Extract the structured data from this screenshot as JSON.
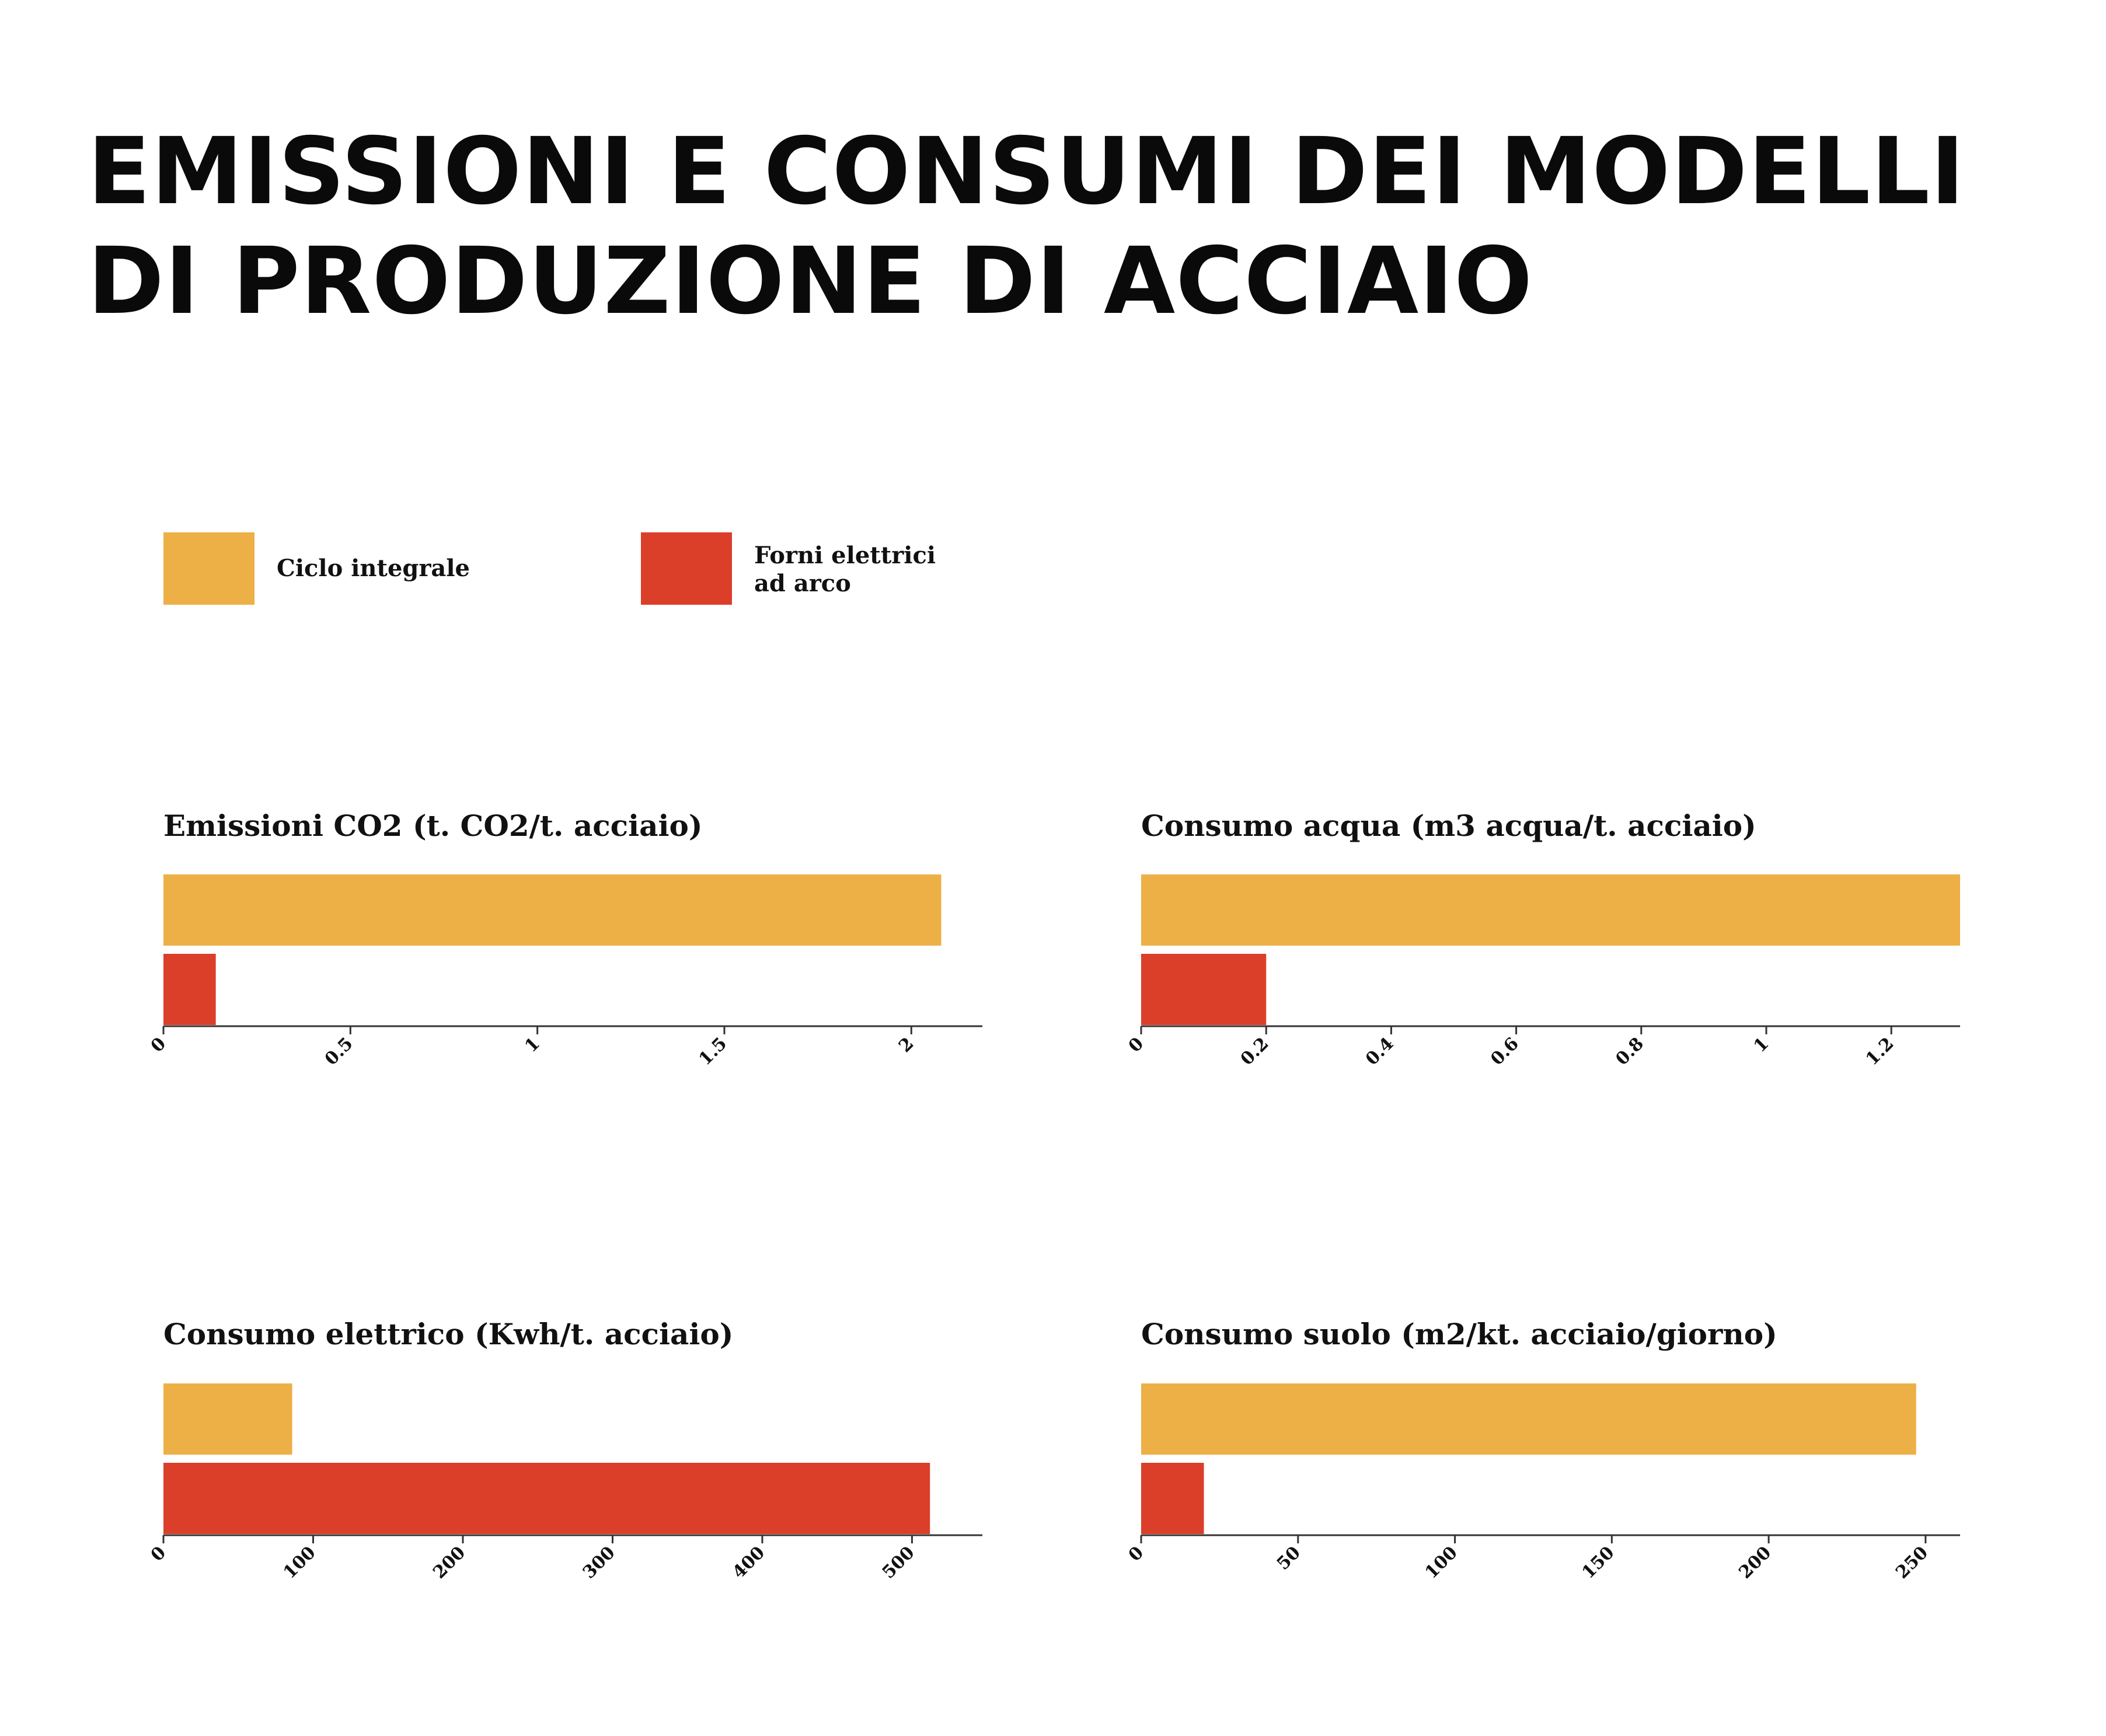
{
  "title": {
    "line1": "EMISSIONI E CONSUMI DEI MODELLI",
    "line2": "DI PRODUZIONE DI ACCIAIO"
  },
  "legend": [
    {
      "label_lines": [
        "Ciclo integrale"
      ],
      "color": "#EDB046"
    },
    {
      "label_lines": [
        "Forni elettrici",
        "ad arco"
      ],
      "color": "#DB3F2A"
    }
  ],
  "colors": {
    "axis": "#333333",
    "text": "#111111"
  },
  "chart_data": [
    {
      "type": "bar",
      "orientation": "horizontal",
      "title": "Emissioni CO2 (t. CO2/t. acciaio)",
      "categories": [
        "Ciclo integrale",
        "Forni elettrici ad arco"
      ],
      "values": [
        2.08,
        0.14
      ],
      "xlim": [
        0,
        2.19
      ],
      "ticks": [
        0,
        0.5,
        1,
        1.5,
        2
      ],
      "tick_labels": [
        "0",
        "0.5",
        "1",
        "1.5",
        "2"
      ],
      "grid": false
    },
    {
      "type": "bar",
      "orientation": "horizontal",
      "title": "Consumo acqua (m3 acqua/t. acciaio)",
      "categories": [
        "Ciclo integrale",
        "Forni elettrici ad arco"
      ],
      "values": [
        1.31,
        0.2
      ],
      "xlim": [
        0,
        1.31
      ],
      "ticks": [
        0,
        0.2,
        0.4,
        0.6,
        0.8,
        1,
        1.2
      ],
      "tick_labels": [
        "0",
        "0.2",
        "0.4",
        "0.6",
        "0.8",
        "1",
        "1.2"
      ],
      "grid": false
    },
    {
      "type": "bar",
      "orientation": "horizontal",
      "title": "Consumo elettrico (Kwh/t. acciaio)",
      "categories": [
        "Ciclo integrale",
        "Forni elettrici ad arco"
      ],
      "values": [
        86,
        512
      ],
      "xlim": [
        0,
        547
      ],
      "ticks": [
        0,
        100,
        200,
        300,
        400,
        500
      ],
      "tick_labels": [
        "0",
        "100",
        "200",
        "300",
        "400",
        "500"
      ],
      "grid": false
    },
    {
      "type": "bar",
      "orientation": "horizontal",
      "title": "Consumo suolo (m2/kt. acciaio/giorno)",
      "categories": [
        "Ciclo integrale",
        "Forni elettrici ad arco"
      ],
      "values": [
        247,
        20
      ],
      "xlim": [
        0,
        261
      ],
      "ticks": [
        0,
        50,
        100,
        150,
        200,
        250
      ],
      "tick_labels": [
        "0",
        "50",
        "100",
        "150",
        "200",
        "250"
      ],
      "grid": false
    }
  ]
}
